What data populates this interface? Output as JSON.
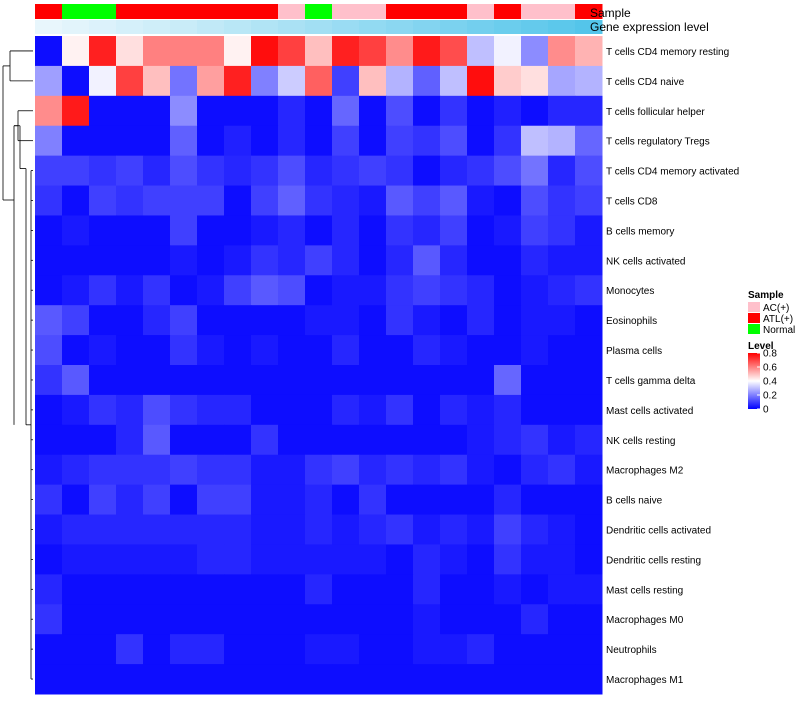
{
  "chart_data": {
    "type": "heatmap",
    "title": "",
    "annotation_tracks": [
      "Sample",
      "Gene expression level"
    ],
    "row_labels": [
      "T cells CD4 memory resting",
      "T cells CD4 naive",
      "T cells follicular helper",
      "T cells regulatory  Tregs",
      "T cells CD4 memory activated",
      "T cells CD8",
      "B cells memory",
      "NK cells activated",
      "Monocytes",
      "Eosinophils",
      "Plasma cells",
      "T cells gamma delta",
      "Mast cells activated",
      "NK cells resting",
      "Macrophages M2",
      "B cells naive",
      "Dendritic cells activated",
      "Dendritic cells resting",
      "Mast cells resting",
      "Macrophages M0",
      "Neutrophils",
      "Macrophages M1"
    ],
    "sample_groups": [
      "ATL(+)",
      "Normal",
      "Normal",
      "ATL(+)",
      "ATL(+)",
      "ATL(+)",
      "ATL(+)",
      "ATL(+)",
      "ATL(+)",
      "AC(+)",
      "Normal",
      "AC(+)",
      "AC(+)",
      "ATL(+)",
      "ATL(+)",
      "ATL(+)",
      "AC(+)",
      "ATL(+)",
      "AC(+)",
      "AC(+)",
      "ATL(+)"
    ],
    "expression_level": [
      0.02,
      0.05,
      0.08,
      0.12,
      0.15,
      0.18,
      0.22,
      0.26,
      0.3,
      0.34,
      0.38,
      0.42,
      0.46,
      0.5,
      0.54,
      0.58,
      0.62,
      0.66,
      0.7,
      0.74,
      0.78
    ],
    "values": [
      [
        0.02,
        0.42,
        0.75,
        0.45,
        0.6,
        0.6,
        0.6,
        0.42,
        0.78,
        0.7,
        0.5,
        0.75,
        0.7,
        0.58,
        0.76,
        0.68,
        0.3,
        0.38,
        0.22,
        0.58,
        0.52
      ],
      [
        0.25,
        0.02,
        0.38,
        0.7,
        0.5,
        0.18,
        0.55,
        0.75,
        0.2,
        0.32,
        0.65,
        0.1,
        0.5,
        0.28,
        0.15,
        0.3,
        0.78,
        0.48,
        0.45,
        0.26,
        0.28
      ],
      [
        0.58,
        0.76,
        0.02,
        0.02,
        0.02,
        0.22,
        0.02,
        0.02,
        0.02,
        0.06,
        0.02,
        0.16,
        0.02,
        0.12,
        0.02,
        0.08,
        0.02,
        0.05,
        0.02,
        0.06,
        0.06
      ],
      [
        0.2,
        0.02,
        0.02,
        0.02,
        0.02,
        0.15,
        0.02,
        0.05,
        0.02,
        0.06,
        0.02,
        0.1,
        0.02,
        0.1,
        0.08,
        0.12,
        0.02,
        0.08,
        0.3,
        0.28,
        0.16
      ],
      [
        0.1,
        0.1,
        0.08,
        0.1,
        0.06,
        0.12,
        0.08,
        0.06,
        0.08,
        0.12,
        0.06,
        0.08,
        0.1,
        0.08,
        0.02,
        0.06,
        0.08,
        0.12,
        0.18,
        0.06,
        0.12
      ],
      [
        0.08,
        0.02,
        0.1,
        0.08,
        0.1,
        0.1,
        0.1,
        0.02,
        0.1,
        0.15,
        0.08,
        0.06,
        0.04,
        0.14,
        0.1,
        0.14,
        0.04,
        0.02,
        0.12,
        0.08,
        0.1
      ],
      [
        0.02,
        0.04,
        0.02,
        0.02,
        0.02,
        0.1,
        0.02,
        0.02,
        0.04,
        0.06,
        0.02,
        0.06,
        0.02,
        0.08,
        0.06,
        0.1,
        0.02,
        0.04,
        0.1,
        0.08,
        0.04
      ],
      [
        0.02,
        0.02,
        0.02,
        0.02,
        0.02,
        0.04,
        0.02,
        0.04,
        0.08,
        0.06,
        0.1,
        0.06,
        0.02,
        0.06,
        0.14,
        0.06,
        0.02,
        0.02,
        0.06,
        0.04,
        0.04
      ],
      [
        0.02,
        0.04,
        0.08,
        0.04,
        0.08,
        0.02,
        0.04,
        0.1,
        0.14,
        0.12,
        0.02,
        0.04,
        0.04,
        0.08,
        0.1,
        0.08,
        0.06,
        0.02,
        0.04,
        0.06,
        0.08
      ],
      [
        0.14,
        0.1,
        0.02,
        0.02,
        0.06,
        0.1,
        0.02,
        0.02,
        0.02,
        0.02,
        0.04,
        0.04,
        0.02,
        0.08,
        0.04,
        0.02,
        0.06,
        0.02,
        0.04,
        0.04,
        0.02
      ],
      [
        0.12,
        0.02,
        0.04,
        0.02,
        0.02,
        0.08,
        0.04,
        0.02,
        0.04,
        0.02,
        0.02,
        0.06,
        0.02,
        0.02,
        0.06,
        0.04,
        0.02,
        0.02,
        0.04,
        0.02,
        0.02
      ],
      [
        0.08,
        0.14,
        0.02,
        0.02,
        0.02,
        0.02,
        0.02,
        0.02,
        0.02,
        0.02,
        0.02,
        0.02,
        0.02,
        0.02,
        0.02,
        0.02,
        0.02,
        0.16,
        0.02,
        0.02,
        0.02
      ],
      [
        0.02,
        0.04,
        0.08,
        0.06,
        0.12,
        0.08,
        0.06,
        0.06,
        0.02,
        0.02,
        0.02,
        0.06,
        0.04,
        0.08,
        0.02,
        0.06,
        0.04,
        0.06,
        0.02,
        0.02,
        0.02
      ],
      [
        0.02,
        0.02,
        0.02,
        0.06,
        0.14,
        0.02,
        0.02,
        0.02,
        0.08,
        0.02,
        0.02,
        0.02,
        0.02,
        0.02,
        0.02,
        0.02,
        0.04,
        0.06,
        0.08,
        0.04,
        0.06
      ],
      [
        0.04,
        0.06,
        0.08,
        0.08,
        0.08,
        0.1,
        0.08,
        0.08,
        0.04,
        0.04,
        0.08,
        0.1,
        0.06,
        0.08,
        0.06,
        0.08,
        0.04,
        0.02,
        0.06,
        0.08,
        0.04
      ],
      [
        0.08,
        0.02,
        0.1,
        0.06,
        0.1,
        0.02,
        0.1,
        0.1,
        0.04,
        0.04,
        0.06,
        0.02,
        0.08,
        0.02,
        0.02,
        0.02,
        0.02,
        0.06,
        0.02,
        0.02,
        0.02
      ],
      [
        0.04,
        0.06,
        0.06,
        0.06,
        0.06,
        0.06,
        0.06,
        0.06,
        0.04,
        0.04,
        0.06,
        0.04,
        0.06,
        0.08,
        0.04,
        0.06,
        0.04,
        0.1,
        0.06,
        0.04,
        0.02
      ],
      [
        0.02,
        0.04,
        0.04,
        0.04,
        0.04,
        0.04,
        0.06,
        0.06,
        0.04,
        0.04,
        0.04,
        0.04,
        0.04,
        0.02,
        0.06,
        0.04,
        0.02,
        0.08,
        0.04,
        0.04,
        0.02
      ],
      [
        0.06,
        0.02,
        0.02,
        0.02,
        0.02,
        0.02,
        0.02,
        0.02,
        0.02,
        0.02,
        0.06,
        0.02,
        0.02,
        0.02,
        0.06,
        0.02,
        0.02,
        0.04,
        0.02,
        0.04,
        0.04
      ],
      [
        0.08,
        0.02,
        0.02,
        0.02,
        0.02,
        0.02,
        0.02,
        0.02,
        0.02,
        0.02,
        0.02,
        0.02,
        0.02,
        0.02,
        0.04,
        0.02,
        0.02,
        0.02,
        0.06,
        0.02,
        0.02
      ],
      [
        0.02,
        0.02,
        0.02,
        0.08,
        0.02,
        0.06,
        0.06,
        0.02,
        0.02,
        0.02,
        0.04,
        0.04,
        0.02,
        0.02,
        0.04,
        0.04,
        0.06,
        0.02,
        0.02,
        0.02,
        0.02
      ],
      [
        0.02,
        0.02,
        0.02,
        0.02,
        0.02,
        0.02,
        0.02,
        0.02,
        0.02,
        0.02,
        0.02,
        0.02,
        0.02,
        0.02,
        0.02,
        0.02,
        0.02,
        0.02,
        0.02,
        0.02,
        0.02
      ]
    ],
    "legend": {
      "sample_title": "Sample",
      "sample_items": [
        {
          "label": "AC(+)",
          "color": "#FFC0CB"
        },
        {
          "label": "ATL(+)",
          "color": "#FF0000"
        },
        {
          "label": "Normal",
          "color": "#00FF00"
        }
      ],
      "level_title": "Level",
      "level_ticks": [
        "0.8",
        "0.6",
        "0.4",
        "0.2",
        "0"
      ],
      "level_tick_values": [
        0.8,
        0.6,
        0.4,
        0.2,
        0
      ],
      "level_range": [
        0,
        0.8
      ]
    },
    "colors": {
      "low": "#0000FF",
      "mid": "#FFFFFF",
      "high": "#FF0000",
      "expr_low": "#E8F6FC",
      "expr_high": "#54C5EA"
    },
    "row_dendrogram": true,
    "column_clustering": false
  }
}
